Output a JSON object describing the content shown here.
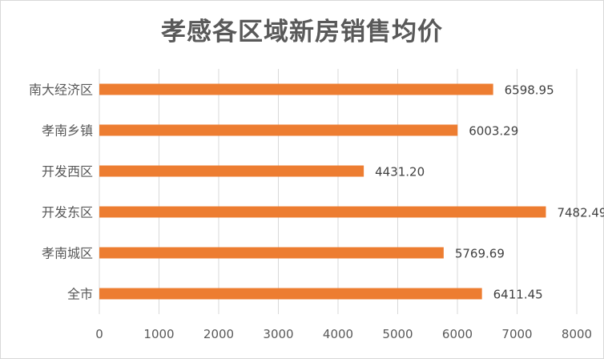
{
  "chart_data": {
    "type": "bar",
    "orientation": "horizontal",
    "title": "孝感各区域新房销售均价",
    "categories": [
      "南大经济区",
      "孝南乡镇",
      "开发西区",
      "开发东区",
      "孝南城区",
      "全市"
    ],
    "values": [
      6598.95,
      6003.29,
      4431.2,
      7482.49,
      5769.69,
      6411.45
    ],
    "value_labels": [
      "6598.95",
      "6003.29",
      "4431.20",
      "7482.49",
      "5769.69",
      "6411.45"
    ],
    "xlim": [
      0,
      8000
    ],
    "xticks": [
      0,
      1000,
      2000,
      3000,
      4000,
      5000,
      6000,
      7000,
      8000
    ],
    "grid": "vertical",
    "legend": "none",
    "bar_color": "#ed7d31",
    "grid_color": "#d9d9d9"
  }
}
